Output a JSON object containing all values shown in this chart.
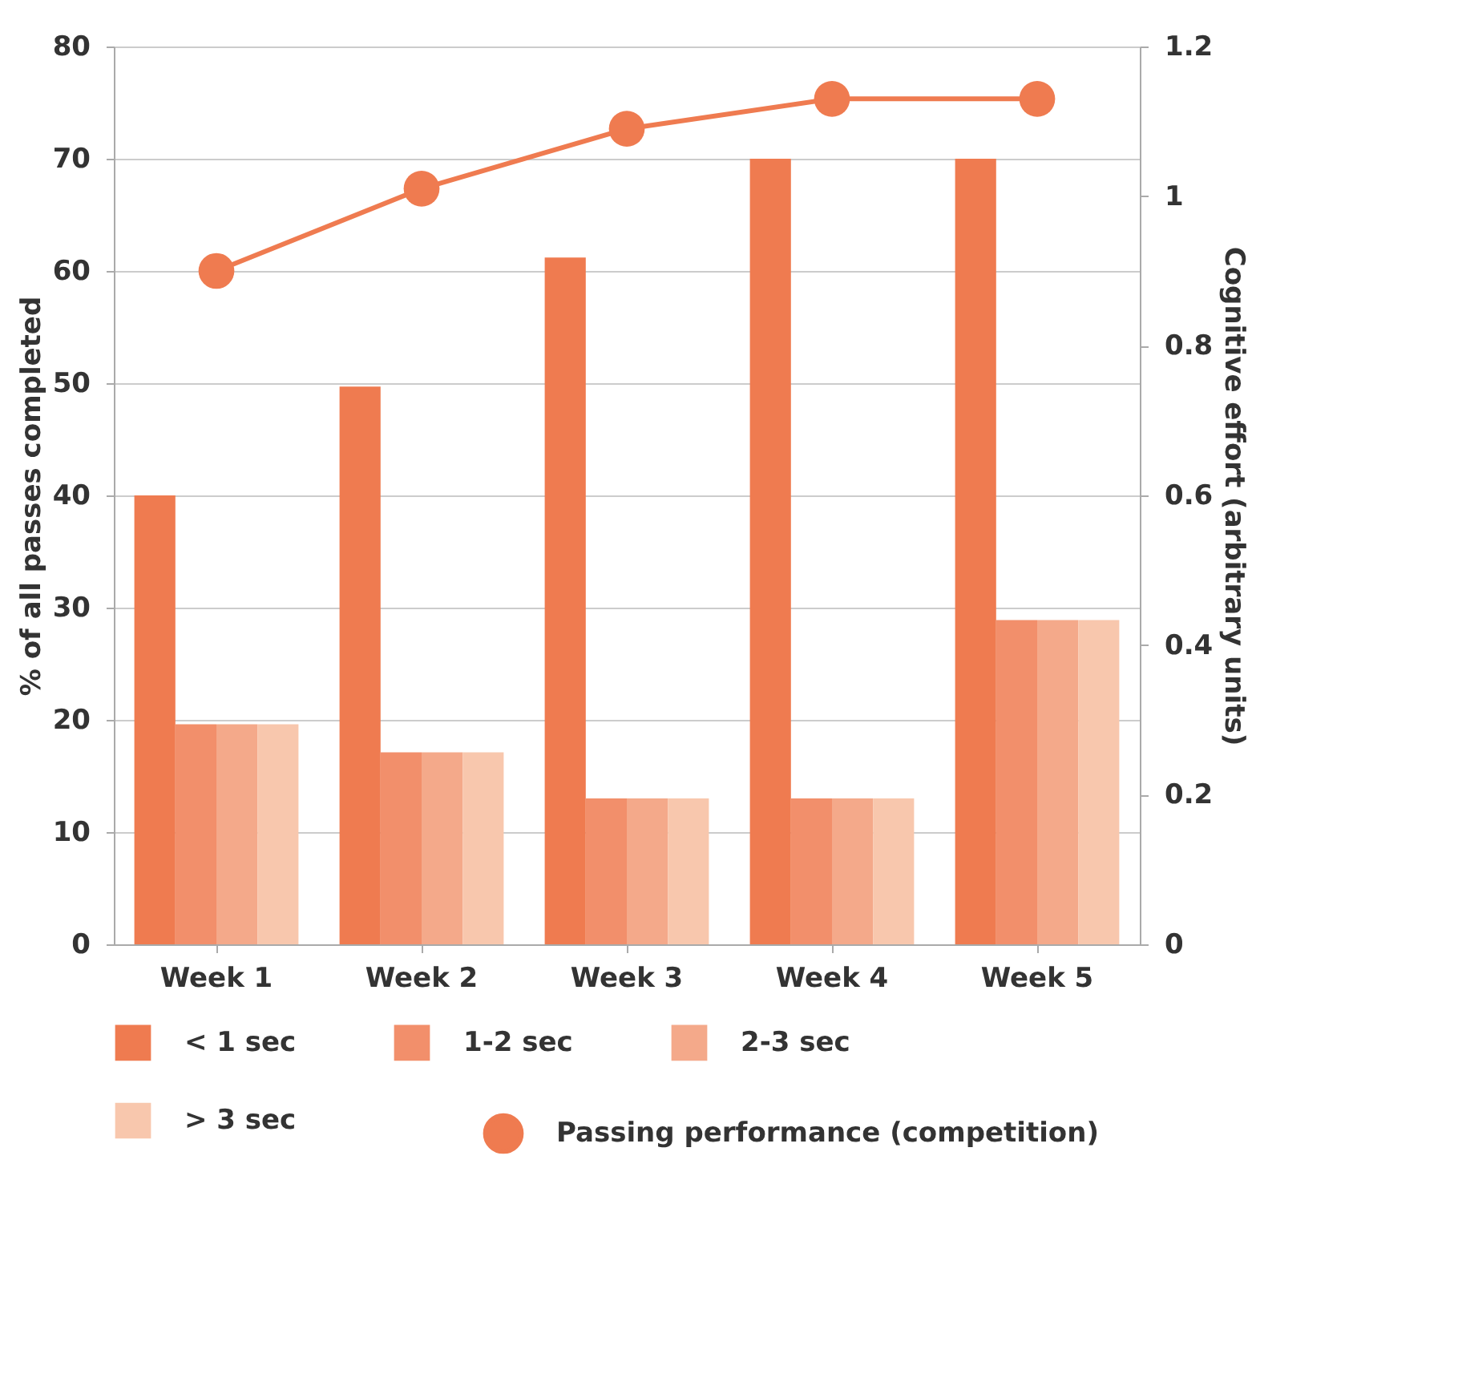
{
  "chart_data": {
    "type": "bar",
    "ylabel": "% of all passes completed",
    "y2label": "Cognitive effort (arbitrary units)",
    "categories": [
      "Week 1",
      "Week 2",
      "Week 3",
      "Week 4",
      "Week 5"
    ],
    "series": [
      {
        "name": "< 1 sec",
        "color": "#ef7b50",
        "values": [
          40,
          49.7,
          61.2,
          70,
          70
        ]
      },
      {
        "name": "1-2 sec",
        "color": "#f28f6b",
        "values": [
          19.6,
          17.1,
          13,
          13,
          28.9
        ]
      },
      {
        "name": "2-3 sec",
        "color": "#f4a98a",
        "values": [
          19.6,
          17.1,
          13,
          13,
          28.9
        ]
      },
      {
        "name": "> 3 sec",
        "color": "#f8c7ad",
        "values": [
          19.6,
          17.1,
          13,
          13,
          28.9
        ]
      },
      {
        "name": "Passing performance (competition)",
        "type": "line",
        "axis": "y2",
        "color": "#ef7b50",
        "marker": "circle",
        "line_style": "solid",
        "values": [
          0.9,
          1.01,
          1.09,
          1.13,
          1.13
        ]
      }
    ],
    "ylim": [
      0,
      80
    ],
    "yticks": [
      0,
      10,
      20,
      30,
      40,
      50,
      60,
      70,
      80
    ],
    "y2lim": [
      0,
      1.2
    ],
    "y2ticks": [
      0,
      0.2,
      0.4,
      0.6,
      0.8,
      1,
      1.2
    ],
    "grid": "y",
    "legend": "bottom"
  }
}
